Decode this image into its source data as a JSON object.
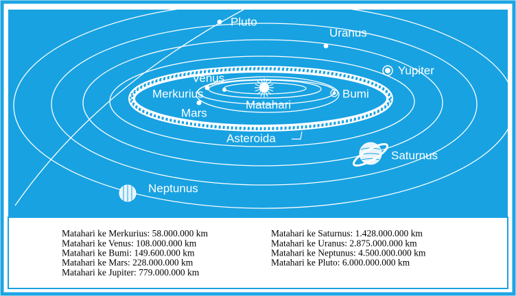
{
  "labels": {
    "pluto": "Pluto",
    "uranus": "Uranus",
    "jupiter": "Yupiter",
    "earth": "Bumi",
    "venus": "Venus",
    "mercury": "Merkurius",
    "mars": "Mars",
    "sun": "Matahari",
    "asteroids": "Asteroida",
    "saturn": "Saturnus",
    "neptune": "Neptunus"
  },
  "distances": {
    "left": [
      "Matahari ke Merkurius: 58.000.000 km",
      "Matahari ke Venus: 108.000.000 km",
      "Matahari ke Bumi: 149.600.000 km",
      "Matahari ke Mars: 228.000.000 km",
      "Matahari ke Jupiter: 779.000.000 km"
    ],
    "right": [
      "Matahari ke Saturnus: 1.428.000.000 km",
      "Matahari ke Uranus: 2.875.000.000 km",
      "Matahari ke Neptunus: 4.500.000.000 km",
      "Matahari ke Pluto: 6.000.000.000 km"
    ]
  }
}
